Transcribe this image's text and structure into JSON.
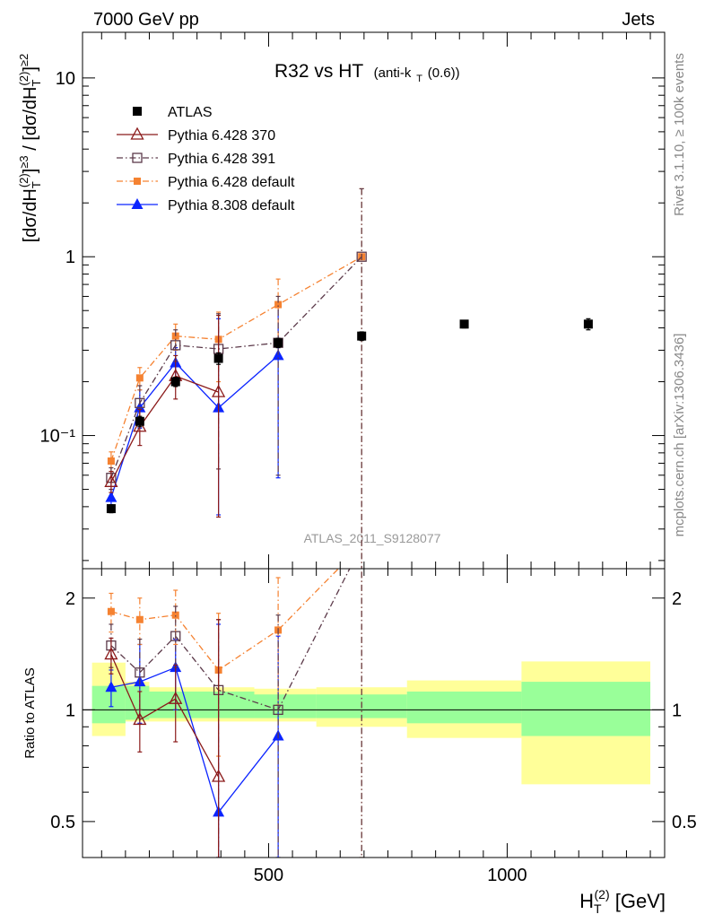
{
  "header": {
    "left": "7000 GeV pp",
    "right": "Jets"
  },
  "side_labels": {
    "rivet": "Rivet 3.1.10, ≥ 100k events",
    "mcplots": "mcplots.cern.ch [arXiv:1306.3436]"
  },
  "analysis_tag": "ATLAS_2011_S9128077",
  "chart_data": [
    {
      "type": "line",
      "panel": "main",
      "title": "R32 vs HT",
      "title_sub": "(anti-k",
      "title_sub_index": "T",
      "title_sub_tail": "(0.6))",
      "ylabel": "[dσ/dH_T^(2)]^≥3 / [dσ/dH_T^(2)]^≥2",
      "ylabel_parts": {
        "open": "[dσ/dH",
        "sub": "T",
        "sup_num": "(2)",
        "mid": "]",
        "sup_ge3": "≥3",
        "slash": " / [dσ/dH",
        "sup_ge2": "≥2"
      },
      "yscale": "log",
      "ylim": [
        0.018,
        18
      ],
      "xlim": [
        110,
        1330
      ],
      "ytick_labels": [
        "10⁻¹",
        "1",
        "10"
      ],
      "legend_placement": "top-left",
      "series": [
        {
          "name": "ATLAS",
          "color": "#000000",
          "marker": "filled-square",
          "x": [
            170,
            230,
            305,
            395,
            520,
            695,
            910,
            1170
          ],
          "y": [
            0.039,
            0.12,
            0.2,
            0.27,
            0.33,
            0.36,
            0.42,
            0.42
          ],
          "y_err": [
            0.002,
            0.008,
            0.012,
            0.02,
            0.02,
            0.02,
            0.02,
            0.03
          ]
        },
        {
          "name": "Pythia 6.428 370",
          "color": "#8b1a1a",
          "marker": "open-triangle",
          "dash": "solid",
          "x": [
            170,
            230,
            305,
            395
          ],
          "y": [
            0.055,
            0.112,
            0.215,
            0.175
          ],
          "y_lo": [
            0.048,
            0.088,
            0.16,
            0.035
          ],
          "y_hi": [
            0.063,
            0.14,
            0.28,
            0.47
          ]
        },
        {
          "name": "Pythia 6.428 391",
          "color": "#5c3a4a",
          "marker": "open-square",
          "dash": "dashdot",
          "x": [
            170,
            230,
            305,
            395,
            520,
            695
          ],
          "y": [
            0.058,
            0.152,
            0.32,
            0.305,
            0.33,
            1.0
          ],
          "y_lo": [
            0.05,
            0.12,
            0.26,
            0.065,
            0.06,
            0.01
          ],
          "y_hi": [
            0.066,
            0.19,
            0.39,
            0.48,
            0.6,
            2.4
          ]
        },
        {
          "name": "Pythia 6.428 default",
          "color": "#f58231",
          "marker": "filled-small-square",
          "dash": "dashdot",
          "x": [
            170,
            230,
            305,
            395,
            520,
            695
          ],
          "y": [
            0.072,
            0.21,
            0.36,
            0.345,
            0.54,
            1.0
          ],
          "y_lo": [
            0.063,
            0.18,
            0.3,
            0.2,
            0.34,
            0.01
          ],
          "y_hi": [
            0.081,
            0.24,
            0.42,
            0.49,
            0.75,
            2.4
          ]
        },
        {
          "name": "Pythia 8.308 default",
          "color": "#0b24ff",
          "marker": "filled-triangle",
          "dash": "solid",
          "x": [
            170,
            230,
            305,
            395,
            520
          ],
          "y": [
            0.045,
            0.143,
            0.255,
            0.143,
            0.28
          ],
          "y_lo": [
            0.04,
            0.11,
            0.2,
            0.036,
            0.058
          ],
          "y_hi": [
            0.05,
            0.18,
            0.31,
            0.45,
            0.52
          ]
        }
      ]
    },
    {
      "type": "line",
      "panel": "ratio",
      "ylabel": "Ratio to ATLAS",
      "xlabel": "H",
      "xlabel_sub": "T",
      "xlabel_sup": "(2)",
      "xlabel_unit": " [GeV]",
      "yscale": "log",
      "ylim": [
        0.4,
        2.4
      ],
      "xlim": [
        110,
        1330
      ],
      "xtick_values": [
        500,
        1000
      ],
      "xtick_labels": [
        "500",
        "1000"
      ],
      "ytick_values": [
        0.5,
        1,
        2
      ],
      "ytick_labels": [
        "0.5",
        "1",
        "2"
      ],
      "bands": {
        "edges": [
          130,
          200,
          250,
          390,
          470,
          600,
          790,
          1030,
          1300
        ],
        "green_lo": [
          0.92,
          0.94,
          0.95,
          0.95,
          0.95,
          0.95,
          0.92,
          0.85
        ],
        "green_hi": [
          1.16,
          1.16,
          1.12,
          1.12,
          1.1,
          1.1,
          1.12,
          1.19
        ],
        "yellow_lo": [
          0.85,
          0.93,
          0.93,
          0.93,
          0.93,
          0.9,
          0.84,
          0.63
        ],
        "yellow_hi": [
          1.34,
          1.19,
          1.15,
          1.15,
          1.14,
          1.15,
          1.2,
          1.35
        ]
      },
      "series": [
        {
          "name": "Pythia 6.428 370",
          "color": "#8b1a1a",
          "marker": "open-triangle",
          "dash": "solid",
          "x": [
            170,
            230,
            305,
            395
          ],
          "y": [
            1.41,
            0.94,
            1.07,
            0.66
          ],
          "y_lo": [
            1.25,
            0.77,
            0.82,
            0.4
          ],
          "y_hi": [
            1.56,
            1.12,
            1.32,
            1.75
          ]
        },
        {
          "name": "Pythia 6.428 391",
          "color": "#5c3a4a",
          "marker": "open-square",
          "dash": "dashdot",
          "x": [
            170,
            230,
            305,
            395,
            520,
            695
          ],
          "y": [
            1.49,
            1.26,
            1.58,
            1.13,
            1.0,
            2.78
          ],
          "y_lo": [
            1.3,
            1.0,
            1.3,
            0.4,
            0.4,
            0.4
          ],
          "y_hi": [
            1.7,
            1.55,
            1.9,
            1.75,
            1.8,
            3.0
          ]
        },
        {
          "name": "Pythia 6.428 default",
          "color": "#f58231",
          "marker": "filled-small-square",
          "dash": "dashdot",
          "x": [
            170,
            230,
            305,
            395,
            520,
            695
          ],
          "y": [
            1.84,
            1.75,
            1.8,
            1.28,
            1.64,
            2.78
          ],
          "y_lo": [
            1.62,
            1.5,
            1.5,
            0.75,
            1.03,
            0.4
          ],
          "y_hi": [
            2.06,
            2.0,
            2.1,
            1.82,
            2.27,
            3.0
          ]
        },
        {
          "name": "Pythia 8.308 default",
          "color": "#0b24ff",
          "marker": "filled-triangle",
          "dash": "solid",
          "x": [
            170,
            230,
            305,
            395,
            520
          ],
          "y": [
            1.15,
            1.19,
            1.3,
            0.53,
            0.85
          ],
          "y_lo": [
            1.02,
            0.92,
            1.0,
            0.4,
            0.4
          ],
          "y_hi": [
            1.28,
            1.5,
            1.55,
            1.7,
            1.58
          ]
        }
      ]
    }
  ]
}
